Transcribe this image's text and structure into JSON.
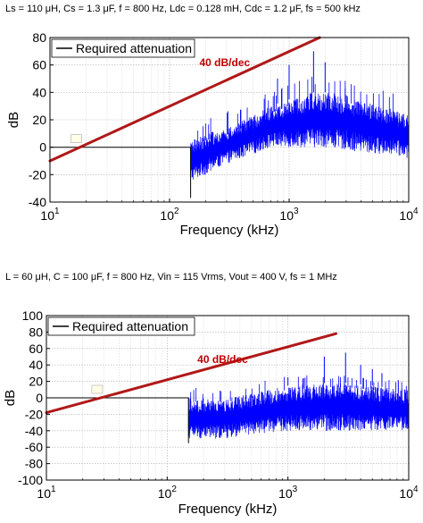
{
  "chart_data": [
    {
      "type": "line",
      "title": "Ls = 110 μH, Cs = 1.3 μF, f = 800 Hz, Ldc = 0.128 mH, Cdc = 1.2 μF, fs = 500 kHz",
      "xlabel": "Frequency (kHz)",
      "ylabel": "dB",
      "xscale": "log",
      "xlim": [
        10,
        10000
      ],
      "ylim": [
        -40,
        80
      ],
      "x_tick_labels": [
        "10^1",
        "10^2",
        "10^3",
        "10^4"
      ],
      "y_ticks": [
        -40,
        -20,
        0,
        20,
        40,
        60,
        80
      ],
      "grid": true,
      "legend": {
        "position": "top-left",
        "entries": [
          "Required attenuation"
        ]
      },
      "annotations": [
        {
          "text": "40 dB/dec",
          "color": "#c00000"
        }
      ],
      "colors": {
        "required": "#b01818",
        "spectrum": "#0000ff"
      },
      "series": [
        {
          "name": "Required attenuation",
          "x": [
            10,
            1800
          ],
          "y": [
            -10,
            80
          ]
        },
        {
          "x": [
            10,
            150,
            150
          ],
          "y": [
            0,
            0,
            -37
          ]
        },
        {
          "style": "noisy-spectrum",
          "start_khz": 150,
          "end_khz": 10000,
          "envelope": {
            "x": [
              150,
              200,
              300,
              500,
              700,
              1000,
              1500,
              2000,
              3000,
              5000,
              7000,
              10000
            ],
            "max": [
              5,
              10,
              14,
              23,
              30,
              35,
              40,
              40,
              38,
              32,
              28,
              23
            ],
            "min": [
              -25,
              -20,
              -12,
              -5,
              0,
              0,
              0,
              0,
              -2,
              -5,
              -5,
              -8
            ]
          },
          "peaks": {
            "x": [
              800,
              1000,
              1600,
              2000
            ],
            "y": [
              50,
              60,
              70,
              62
            ]
          }
        }
      ]
    },
    {
      "type": "line",
      "title": "L = 60 μH, C = 100 μF, f = 800 Hz, Vin = 115 Vrms, Vout = 400 V, fs = 1 MHz",
      "xlabel": "Frequency (kHz)",
      "ylabel": "dB",
      "xscale": "log",
      "xlim": [
        10,
        10000
      ],
      "ylim": [
        -100,
        100
      ],
      "x_tick_labels": [
        "10^1",
        "10^2",
        "10^3",
        "10^4"
      ],
      "y_ticks": [
        -100,
        -80,
        -60,
        -40,
        -20,
        0,
        20,
        40,
        60,
        80,
        100
      ],
      "grid": true,
      "legend": {
        "position": "top-left",
        "entries": [
          "Required attenuation"
        ]
      },
      "annotations": [
        {
          "text": "40 dB/dec",
          "color": "#c00000"
        }
      ],
      "colors": {
        "required": "#b01818",
        "spectrum": "#0000ff"
      },
      "series": [
        {
          "name": "Required attenuation",
          "x": [
            10,
            2500
          ],
          "y": [
            -18,
            78
          ]
        },
        {
          "x": [
            10,
            150,
            150
          ],
          "y": [
            0,
            0,
            -55
          ]
        },
        {
          "style": "noisy-spectrum",
          "start_khz": 150,
          "end_khz": 10000,
          "envelope": {
            "x": [
              150,
              300,
              500,
              1000,
              2000,
              3000,
              5000,
              7000,
              10000
            ],
            "max": [
              0,
              0,
              5,
              15,
              18,
              18,
              15,
              12,
              10
            ],
            "min": [
              -50,
              -50,
              -45,
              -40,
              -40,
              -40,
              -40,
              -40,
              -40
            ]
          },
          "peaks": {
            "x": [
              1000,
              2000,
              3000,
              4000,
              5000,
              6000
            ],
            "y": [
              25,
              50,
              55,
              40,
              35,
              30
            ]
          }
        }
      ]
    }
  ]
}
